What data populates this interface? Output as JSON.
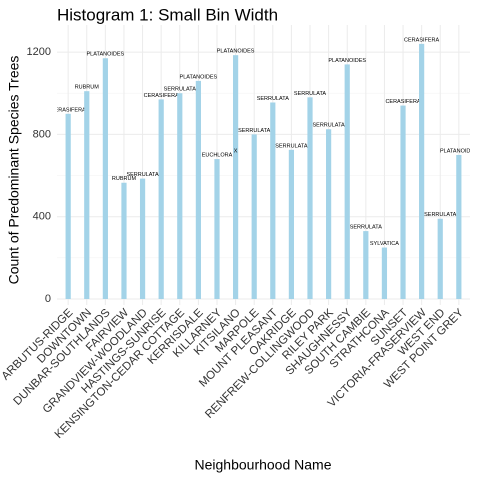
{
  "chart_data": {
    "type": "bar",
    "title": "Histogram 1: Small Bin Width",
    "x_label": "Neighbourhood Name",
    "y_label": "Count of Predominant Species Trees",
    "categories": [
      "ARBUTUS-RIDGE",
      "DOWNTOWN",
      "DUNBAR-SOUTHLANDS",
      "FAIRVIEW",
      "GRANDVIEW-WOODLAND",
      "HASTINGS-SUNRISE",
      "KENSINGTON-CEDAR COTTAGE",
      "KERRISDALE",
      "KILLARNEY",
      "KITSILANO",
      "MARPOLE",
      "MOUNT PLEASANT",
      "OAKRIDGE",
      "RENFREW-COLLINGWOOD",
      "RILEY PARK",
      "SHAUGHNESSY",
      "SOUTH CAMBIE",
      "STRATHCONA",
      "SUNSET",
      "VICTORIA-FRASERVIEW",
      "WEST END",
      "WEST POINT GREY"
    ],
    "values": [
      900,
      1010,
      1170,
      565,
      585,
      970,
      1000,
      1060,
      680,
      1185,
      800,
      955,
      725,
      980,
      825,
      1140,
      330,
      250,
      940,
      1240,
      390,
      700
    ],
    "bar_labels": [
      "CERASIFERA",
      "RUBRUM",
      "PLATANOIDES",
      "RUBRUM",
      "SERRULATA",
      "CERASIFERA",
      "SERRULATA",
      "PLATANOIDES",
      "EUCHLORA",
      "PLATANOIDES",
      "SERRULATA",
      "SERRULATA",
      "SERRULATA",
      "SERRULATA",
      "SERRULATA",
      "PLATANOIDES",
      "SERRULATA",
      "SYLVATICA",
      "CERASIFERA",
      "CERASIFERA",
      "SERRULATA",
      "PLATANOIDES"
    ],
    "extra_labels": [
      {
        "category": "KITSILANO",
        "label": "X",
        "value": 700
      }
    ],
    "color": "#a3d3e8",
    "ylim": [
      0,
      1300
    ],
    "yticks": [
      0,
      400,
      800,
      1200
    ],
    "minor_yticks": [
      200,
      600,
      1000
    ],
    "grid": true
  }
}
